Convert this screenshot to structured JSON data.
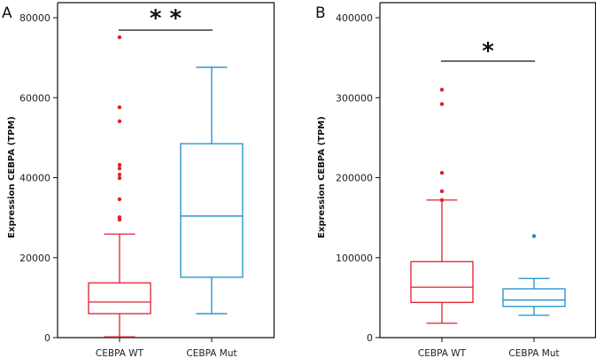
{
  "chart_data": [
    {
      "type": "box",
      "panel": "A",
      "title": "",
      "xlabel": "",
      "ylabel": "Expression CEBPA (TPM)",
      "ylim": [
        0,
        80000
      ],
      "yticks": [
        0,
        20000,
        40000,
        60000,
        80000
      ],
      "ytick_labels": [
        "0",
        "20000",
        "40000",
        "60000",
        "80000"
      ],
      "categories": [
        "CEBPA WT",
        "CEBPA Mut"
      ],
      "significance": "* *",
      "series": [
        {
          "name": "CEBPA WT",
          "color": "#e0202a",
          "min": 200,
          "q1": 6000,
          "median": 8900,
          "q3": 13700,
          "max": 25900,
          "outliers": [
            75100,
            57600,
            54100,
            43200,
            42300,
            40800,
            39900,
            34600,
            30100,
            29500
          ]
        },
        {
          "name": "CEBPA Mut",
          "color": "#1a8fd0",
          "min": 6000,
          "q1": 15100,
          "median": 30400,
          "q3": 48500,
          "max": 67600,
          "outliers": []
        }
      ]
    },
    {
      "type": "box",
      "panel": "B",
      "title": "",
      "xlabel": "",
      "ylabel": "Expression CEBPA (TPM)",
      "ylim": [
        0,
        400000
      ],
      "yticks": [
        0,
        100000,
        200000,
        300000,
        400000
      ],
      "ytick_labels": [
        "0",
        "100000",
        "200000",
        "300000",
        "400000"
      ],
      "categories": [
        "CEBPA WT",
        "CEBPA Mut"
      ],
      "significance": "*",
      "series": [
        {
          "name": "CEBPA WT",
          "color": "#e0202a",
          "min": 18000,
          "q1": 44000,
          "median": 63000,
          "q3": 95000,
          "max": 172000,
          "outliers": [
            310000,
            292000,
            206000,
            183000,
            172000
          ]
        },
        {
          "name": "CEBPA Mut",
          "color": "#1a8fd0",
          "min": 28000,
          "q1": 39000,
          "median": 47000,
          "q3": 61000,
          "max": 74000,
          "outliers": [
            127000
          ]
        }
      ]
    }
  ]
}
